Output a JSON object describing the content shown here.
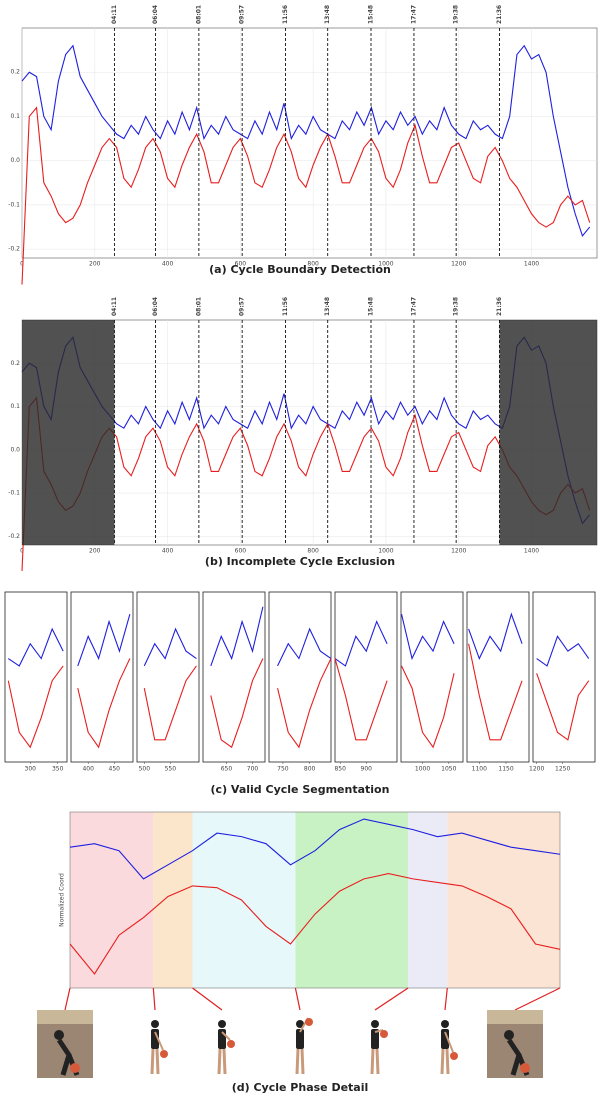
{
  "chart_data": [
    {
      "type": "line",
      "title": "(a) Cycle Boundary Detection",
      "x": [
        0,
        20,
        40,
        60,
        80,
        100,
        120,
        140,
        160,
        180,
        200,
        220,
        240,
        260,
        280,
        300,
        320,
        340,
        360,
        380,
        400,
        420,
        440,
        460,
        480,
        500,
        520,
        540,
        560,
        580,
        600,
        620,
        640,
        660,
        680,
        700,
        720,
        740,
        760,
        780,
        800,
        820,
        840,
        860,
        880,
        900,
        920,
        940,
        960,
        980,
        1000,
        1020,
        1040,
        1060,
        1080,
        1100,
        1120,
        1140,
        1160,
        1180,
        1200,
        1220,
        1240,
        1260,
        1280,
        1300,
        1320,
        1340,
        1360,
        1380,
        1400,
        1420,
        1440,
        1460,
        1480,
        1500,
        1520,
        1540,
        1560
      ],
      "series": [
        {
          "color": "#1f1fe0",
          "values": [
            0.18,
            0.2,
            0.19,
            0.1,
            0.07,
            0.18,
            0.24,
            0.26,
            0.19,
            0.16,
            0.13,
            0.1,
            0.08,
            0.06,
            0.05,
            0.08,
            0.06,
            0.1,
            0.07,
            0.05,
            0.09,
            0.06,
            0.11,
            0.07,
            0.12,
            0.05,
            0.08,
            0.06,
            0.1,
            0.07,
            0.06,
            0.05,
            0.09,
            0.06,
            0.11,
            0.07,
            0.13,
            0.05,
            0.08,
            0.06,
            0.1,
            0.07,
            0.06,
            0.05,
            0.09,
            0.07,
            0.11,
            0.08,
            0.12,
            0.06,
            0.09,
            0.07,
            0.11,
            0.08,
            0.1,
            0.06,
            0.09,
            0.07,
            0.12,
            0.08,
            0.06,
            0.05,
            0.09,
            0.07,
            0.08,
            0.06,
            0.05,
            0.1,
            0.24,
            0.26,
            0.23,
            0.24,
            0.2,
            0.1,
            0.02,
            -0.06,
            -0.12,
            -0.17,
            -0.15
          ]
        },
        {
          "color": "#e81e1e",
          "values": [
            -0.28,
            0.1,
            0.12,
            -0.05,
            -0.08,
            -0.12,
            -0.14,
            -0.13,
            -0.1,
            -0.05,
            -0.01,
            0.03,
            0.05,
            0.03,
            -0.04,
            -0.06,
            -0.02,
            0.03,
            0.05,
            0.02,
            -0.04,
            -0.06,
            -0.01,
            0.03,
            0.06,
            0.02,
            -0.05,
            -0.05,
            -0.01,
            0.03,
            0.05,
            0.01,
            -0.05,
            -0.06,
            -0.02,
            0.03,
            0.06,
            0.02,
            -0.04,
            -0.06,
            -0.01,
            0.03,
            0.06,
            0.01,
            -0.05,
            -0.05,
            -0.01,
            0.03,
            0.05,
            0.02,
            -0.04,
            -0.06,
            -0.02,
            0.04,
            0.08,
            0.01,
            -0.05,
            -0.05,
            -0.01,
            0.03,
            0.04,
            0.0,
            -0.04,
            -0.05,
            0.01,
            0.03,
            0.0,
            -0.04,
            -0.06,
            -0.09,
            -0.12,
            -0.14,
            -0.15,
            -0.14,
            -0.1,
            -0.08,
            -0.1,
            -0.09,
            -0.14
          ]
        }
      ],
      "xlim": [
        0,
        1580
      ],
      "ylim": [
        -0.22,
        0.3
      ],
      "xticks": [
        0,
        200,
        400,
        600,
        800,
        1000,
        1200,
        1400
      ],
      "yticks": [
        -0.2,
        -0.1,
        {
          "value": 0,
          "label": "0.0"
        },
        0.1,
        0.2
      ],
      "boundaries": [
        {
          "value": 254,
          "label": "04:11"
        },
        {
          "value": 367,
          "label": "06:04"
        },
        {
          "value": 486,
          "label": "08:01"
        },
        {
          "value": 605,
          "label": "09:57"
        },
        {
          "value": 724,
          "label": "11:56"
        },
        {
          "value": 840,
          "label": "13:48"
        },
        {
          "value": 959,
          "label": "15:48"
        },
        {
          "value": 1077,
          "label": "17:47"
        },
        {
          "value": 1193,
          "label": "19:38"
        },
        {
          "value": 1312,
          "label": "21:36"
        }
      ]
    },
    {
      "type": "line_excluded",
      "title": "(b) Incomplete Cycle Exclusion"
    },
    {
      "type": "segments",
      "title": "(c) Valid Cycle Segmentation",
      "ylim": [
        -0.08,
        0.15
      ],
      "xticks": [
        [
          300,
          350
        ],
        [
          400,
          450
        ],
        [
          500,
          550
        ],
        [
          650,
          700
        ],
        [
          750,
          800
        ],
        [
          850,
          900
        ],
        [
          1000,
          1050
        ],
        [
          1100,
          1150
        ],
        [
          1200,
          1250
        ]
      ]
    },
    {
      "type": "phases",
      "title": "(d) Cycle Phase Detail",
      "ylabel": "Normalized Coord",
      "x": [
        0,
        5,
        10,
        15,
        20,
        25,
        30,
        35,
        40,
        45,
        50,
        55,
        60,
        65,
        70,
        75,
        80,
        85,
        90,
        95,
        100
      ],
      "series": [
        {
          "color": "#1f1fe0",
          "values": [
            0.8,
            0.82,
            0.78,
            0.62,
            0.7,
            0.78,
            0.88,
            0.86,
            0.82,
            0.7,
            0.78,
            0.9,
            0.96,
            0.93,
            0.9,
            0.86,
            0.88,
            0.84,
            0.8,
            0.78,
            0.76
          ]
        },
        {
          "color": "#e81e1e",
          "values": [
            0.25,
            0.08,
            0.3,
            0.4,
            0.52,
            0.58,
            0.57,
            0.5,
            0.35,
            0.25,
            0.42,
            0.55,
            0.62,
            0.65,
            0.62,
            0.6,
            0.58,
            0.52,
            0.45,
            0.25,
            0.22
          ]
        }
      ],
      "xlim": [
        0,
        100
      ],
      "ylim": [
        0,
        1
      ],
      "phases": [
        {
          "start": 0,
          "end": 17,
          "color": "#fadadd"
        },
        {
          "start": 17,
          "end": 25,
          "color": "#fbe6cc"
        },
        {
          "start": 25,
          "end": 46,
          "color": "#e6f8fa"
        },
        {
          "start": 46,
          "end": 69,
          "color": "#c9f2c4"
        },
        {
          "start": 69,
          "end": 77,
          "color": "#ebebf7"
        },
        {
          "start": 77,
          "end": 100,
          "color": "#fbe4d4"
        }
      ]
    }
  ]
}
